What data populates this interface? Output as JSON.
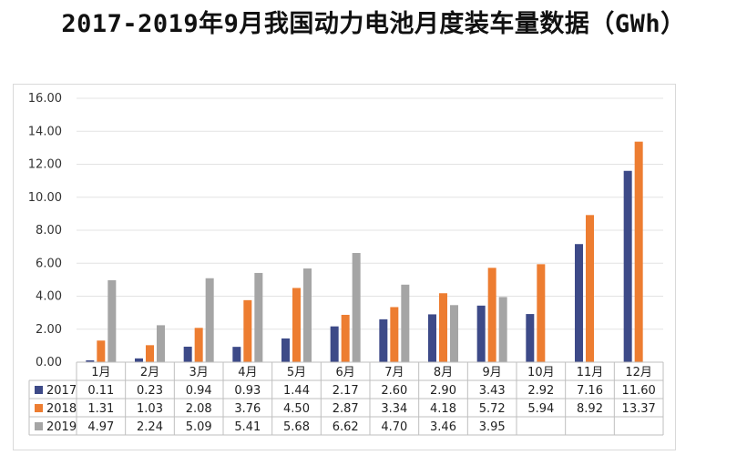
{
  "title": "2017-2019年9月我国动力电池月度装车量数据（GWh）",
  "chart_data": {
    "type": "bar",
    "categories": [
      "1月",
      "2月",
      "3月",
      "4月",
      "5月",
      "6月",
      "7月",
      "8月",
      "9月",
      "10月",
      "11月",
      "12月"
    ],
    "series": [
      {
        "name": "2017",
        "color": "#3d4a88",
        "values": [
          0.11,
          0.23,
          0.94,
          0.93,
          1.44,
          2.17,
          2.6,
          2.9,
          3.43,
          2.92,
          7.16,
          11.6
        ]
      },
      {
        "name": "2018",
        "color": "#ed7d31",
        "values": [
          1.31,
          1.03,
          2.08,
          3.76,
          4.5,
          2.87,
          3.34,
          4.18,
          5.72,
          5.94,
          8.92,
          13.37
        ]
      },
      {
        "name": "2019",
        "color": "#a5a5a5",
        "values": [
          4.97,
          2.24,
          5.09,
          5.41,
          5.68,
          6.62,
          4.7,
          3.46,
          3.95,
          null,
          null,
          null
        ]
      }
    ],
    "ylim": [
      0,
      16
    ],
    "yticks": [
      "0.00",
      "2.00",
      "4.00",
      "6.00",
      "8.00",
      "10.00",
      "12.00",
      "14.00",
      "16.00"
    ],
    "grid": true,
    "legend": "data-table",
    "data_table": true
  }
}
